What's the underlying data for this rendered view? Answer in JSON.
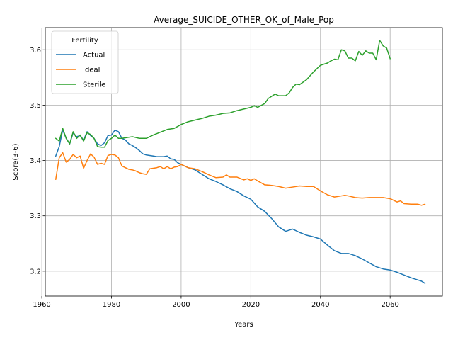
{
  "chart_data": {
    "type": "line",
    "title": "Average_SUICIDE_OTHER_OK_of_Male_Pop",
    "xlabel": "Years",
    "ylabel": "Score(3-6)",
    "xlim": [
      1961,
      2075
    ],
    "ylim": [
      3.155,
      3.64
    ],
    "xticks": [
      1960,
      1980,
      2000,
      2020,
      2040,
      2060
    ],
    "yticks": [
      3.2,
      3.3,
      3.4,
      3.5,
      3.6
    ],
    "xtick_labels": [
      "1960",
      "1980",
      "2000",
      "2020",
      "2040",
      "2060"
    ],
    "ytick_labels": [
      "3.2",
      "3.3",
      "3.4",
      "3.5",
      "3.6"
    ],
    "grid": true,
    "legend": {
      "title": "Fertility",
      "placement": "top-left"
    },
    "series": [
      {
        "name": "Actual",
        "color": "#1f77b4",
        "x": [
          1964,
          1965,
          1966,
          1967,
          1968,
          1969,
          1970,
          1971,
          1972,
          1973,
          1974,
          1975,
          1976,
          1977,
          1978,
          1979,
          1980,
          1981,
          1982,
          1983,
          1984,
          1985,
          1986,
          1987,
          1988,
          1989,
          1990,
          1991,
          1992,
          1993,
          1994,
          1995,
          1996,
          1997,
          1998,
          1999,
          2000,
          2002,
          2004,
          2006,
          2008,
          2010,
          2012,
          2014,
          2016,
          2018,
          2020,
          2022,
          2024,
          2026,
          2028,
          2030,
          2032,
          2034,
          2036,
          2038,
          2040,
          2042,
          2044,
          2046,
          2048,
          2050,
          2052,
          2054,
          2056,
          2058,
          2060,
          2062,
          2064,
          2066,
          2068,
          2069,
          2070
        ],
        "y": [
          3.408,
          3.425,
          3.455,
          3.44,
          3.43,
          3.45,
          3.443,
          3.445,
          3.437,
          3.452,
          3.445,
          3.44,
          3.43,
          3.427,
          3.432,
          3.445,
          3.446,
          3.455,
          3.452,
          3.44,
          3.437,
          3.43,
          3.427,
          3.423,
          3.418,
          3.412,
          3.41,
          3.409,
          3.408,
          3.407,
          3.407,
          3.407,
          3.408,
          3.403,
          3.402,
          3.396,
          3.393,
          3.387,
          3.383,
          3.375,
          3.367,
          3.362,
          3.356,
          3.349,
          3.344,
          3.336,
          3.33,
          3.316,
          3.308,
          3.295,
          3.28,
          3.272,
          3.276,
          3.27,
          3.265,
          3.262,
          3.258,
          3.247,
          3.237,
          3.232,
          3.232,
          3.228,
          3.222,
          3.215,
          3.208,
          3.204,
          3.202,
          3.198,
          3.193,
          3.188,
          3.184,
          3.182,
          3.178
        ]
      },
      {
        "name": "Ideal",
        "color": "#ff7f0e",
        "x": [
          1964,
          1965,
          1966,
          1967,
          1968,
          1969,
          1970,
          1971,
          1972,
          1973,
          1974,
          1975,
          1976,
          1977,
          1978,
          1979,
          1980,
          1981,
          1982,
          1983,
          1984,
          1985,
          1986,
          1987,
          1988,
          1989,
          1990,
          1991,
          1992,
          1993,
          1994,
          1995,
          1996,
          1997,
          1998,
          1999,
          2000,
          2002,
          2004,
          2006,
          2008,
          2010,
          2012,
          2013,
          2014,
          2016,
          2018,
          2019,
          2020,
          2021,
          2022,
          2024,
          2026,
          2028,
          2030,
          2032,
          2034,
          2036,
          2038,
          2040,
          2042,
          2044,
          2046,
          2047,
          2048,
          2050,
          2052,
          2054,
          2056,
          2058,
          2060,
          2062,
          2063,
          2064,
          2066,
          2068,
          2069,
          2070
        ],
        "y": [
          3.366,
          3.405,
          3.414,
          3.397,
          3.402,
          3.411,
          3.405,
          3.408,
          3.386,
          3.4,
          3.412,
          3.406,
          3.393,
          3.395,
          3.393,
          3.409,
          3.411,
          3.41,
          3.405,
          3.39,
          3.387,
          3.384,
          3.383,
          3.381,
          3.378,
          3.376,
          3.375,
          3.385,
          3.386,
          3.387,
          3.389,
          3.385,
          3.389,
          3.385,
          3.388,
          3.389,
          3.393,
          3.387,
          3.385,
          3.38,
          3.374,
          3.369,
          3.37,
          3.374,
          3.37,
          3.37,
          3.365,
          3.367,
          3.364,
          3.367,
          3.363,
          3.356,
          3.355,
          3.353,
          3.35,
          3.352,
          3.354,
          3.353,
          3.353,
          3.345,
          3.338,
          3.334,
          3.336,
          3.337,
          3.336,
          3.333,
          3.332,
          3.333,
          3.333,
          3.333,
          3.331,
          3.325,
          3.327,
          3.322,
          3.321,
          3.321,
          3.319,
          3.321
        ]
      },
      {
        "name": "Sterile",
        "color": "#2ca02c",
        "x": [
          1964,
          1965,
          1966,
          1967,
          1968,
          1969,
          1970,
          1971,
          1972,
          1973,
          1974,
          1975,
          1976,
          1977,
          1978,
          1979,
          1980,
          1981,
          1982,
          1983,
          1984,
          1986,
          1988,
          1990,
          1992,
          1994,
          1996,
          1998,
          2000,
          2002,
          2004,
          2006,
          2008,
          2010,
          2012,
          2014,
          2016,
          2018,
          2020,
          2021,
          2022,
          2024,
          2025,
          2026,
          2027,
          2028,
          2030,
          2031,
          2032,
          2033,
          2034,
          2036,
          2038,
          2040,
          2042,
          2043,
          2044,
          2045,
          2046,
          2047,
          2048,
          2049,
          2050,
          2051,
          2052,
          2053,
          2054,
          2055,
          2056,
          2057,
          2058,
          2059,
          2060
        ],
        "y": [
          3.44,
          3.435,
          3.458,
          3.44,
          3.43,
          3.452,
          3.44,
          3.446,
          3.435,
          3.45,
          3.447,
          3.44,
          3.425,
          3.424,
          3.424,
          3.436,
          3.44,
          3.446,
          3.44,
          3.44,
          3.441,
          3.443,
          3.44,
          3.44,
          3.446,
          3.451,
          3.456,
          3.458,
          3.465,
          3.47,
          3.473,
          3.476,
          3.48,
          3.482,
          3.485,
          3.486,
          3.49,
          3.493,
          3.496,
          3.499,
          3.496,
          3.503,
          3.512,
          3.516,
          3.52,
          3.517,
          3.517,
          3.522,
          3.532,
          3.538,
          3.537,
          3.546,
          3.56,
          3.572,
          3.576,
          3.58,
          3.583,
          3.582,
          3.6,
          3.598,
          3.585,
          3.585,
          3.58,
          3.597,
          3.59,
          3.598,
          3.594,
          3.594,
          3.582,
          3.617,
          3.607,
          3.603,
          3.584
        ]
      }
    ]
  }
}
